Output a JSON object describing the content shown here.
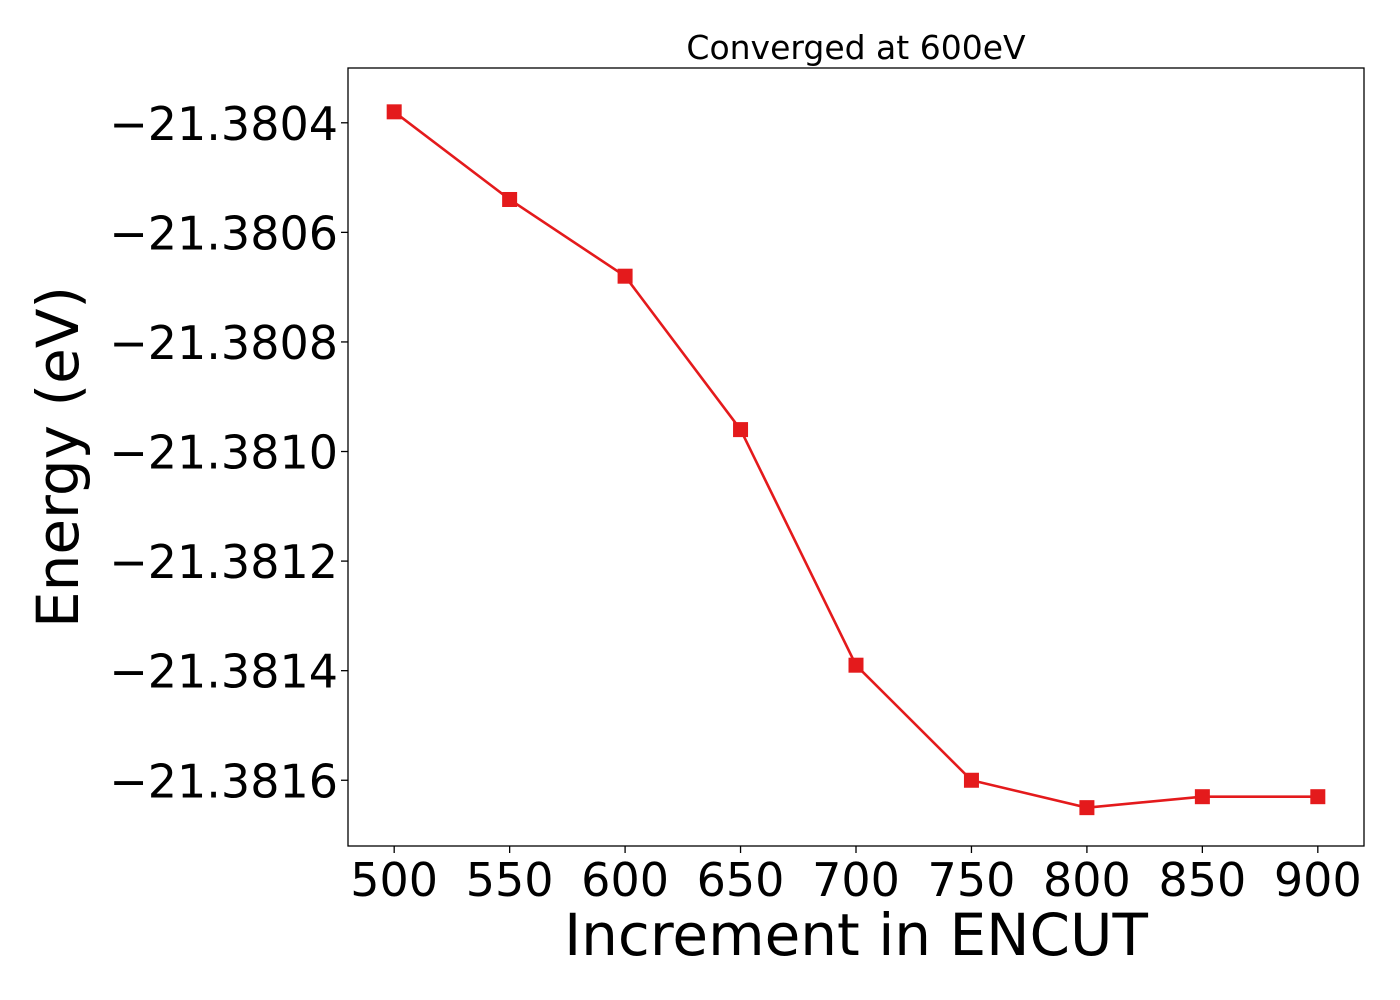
{
  "chart_data": {
    "type": "line",
    "title": "Converged at 600eV",
    "xlabel": "Increment in ENCUT",
    "ylabel": "Energy (eV)",
    "x": [
      500,
      550,
      600,
      650,
      700,
      750,
      800,
      850,
      900
    ],
    "series": [
      {
        "values": [
          -21.38038,
          -21.38054,
          -21.38068,
          -21.38096,
          -21.38139,
          -21.3816,
          -21.38165,
          -21.38163,
          -21.38163
        ],
        "color": "#e41a1c",
        "marker": "square"
      }
    ],
    "xlim": [
      480,
      920
    ],
    "ylim": [
      -21.38172,
      -21.3803
    ],
    "xticks": [
      500,
      550,
      600,
      650,
      700,
      750,
      800,
      850,
      900
    ],
    "xtick_labels": [
      "500",
      "550",
      "600",
      "650",
      "700",
      "750",
      "800",
      "850",
      "900"
    ],
    "yticks": [
      -21.3804,
      -21.3806,
      -21.3808,
      -21.381,
      -21.3812,
      -21.3814,
      -21.3816
    ],
    "ytick_labels": [
      "−21.3804",
      "−21.3806",
      "−21.3808",
      "−21.3810",
      "−21.3812",
      "−21.3814",
      "−21.3816"
    ],
    "grid": false,
    "legend": "none"
  }
}
